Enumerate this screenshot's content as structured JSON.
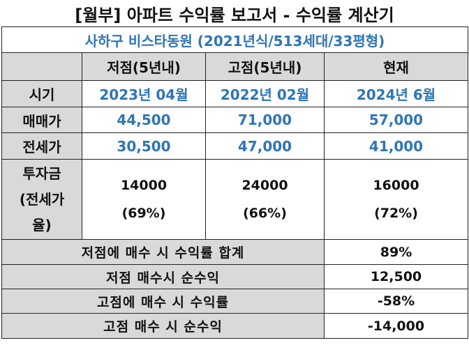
{
  "title": "[월부] 아파트 수익률 보고서 - 수익률 계산기",
  "subtitle": "사하구 비스타동원 (2021년식/513세대/33평형)",
  "columns": [
    "저점(5년내)",
    "고점(5년내)",
    "현재"
  ],
  "rows": {
    "period": {
      "label": "시기",
      "values": [
        "2023년 04월",
        "2022년 02월",
        "2024년 6월"
      ]
    },
    "sale_price": {
      "label": "매매가",
      "values": [
        "44,500",
        "71,000",
        "57,000"
      ]
    },
    "jeonse_price": {
      "label": "전세가",
      "values": [
        "30,500",
        "47,000",
        "41,000"
      ]
    },
    "investment": {
      "label_lines": [
        "투자금",
        "(전세가",
        "율)"
      ],
      "values": [
        {
          "amount": "14000",
          "ratio": "(69%)"
        },
        {
          "amount": "24000",
          "ratio": "(66%)"
        },
        {
          "amount": "16000",
          "ratio": "(72%)"
        }
      ]
    }
  },
  "summary": [
    {
      "label": "저점에 매수 시 수익률 합계",
      "value": "89%"
    },
    {
      "label": "저점 매수시 순수익",
      "value": "12,500"
    },
    {
      "label": "고점에 매수 시 수익률",
      "value": "-58%"
    },
    {
      "label": "고점 매수 시 순수익",
      "value": "-14,000"
    }
  ],
  "colors": {
    "accent_blue": "#2e75b6",
    "header_gray": "#d9d9d9",
    "border": "#222222"
  }
}
